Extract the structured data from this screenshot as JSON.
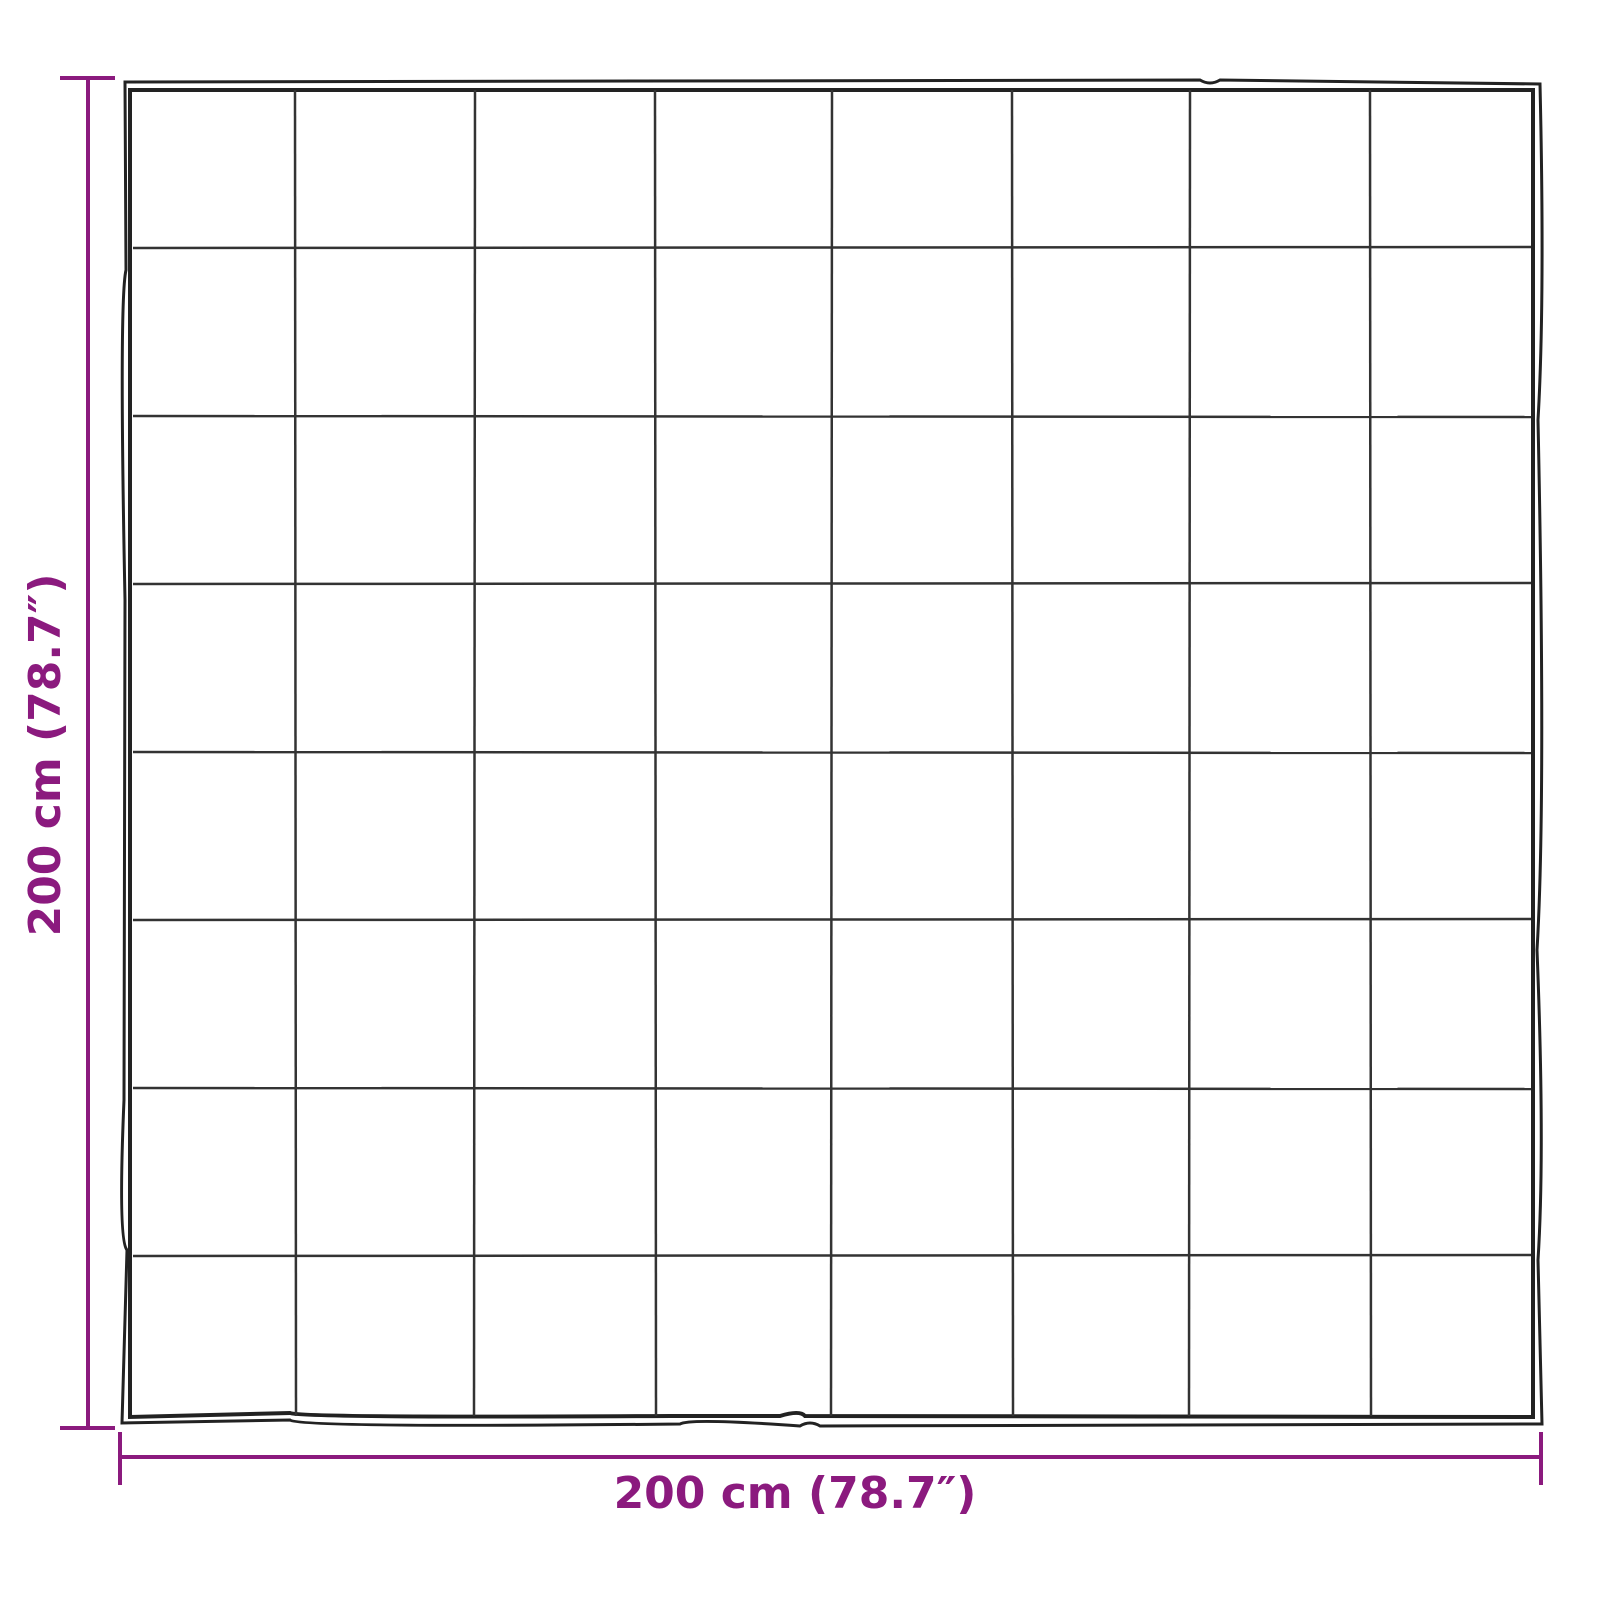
{
  "dimensions": {
    "width_label": "200 cm (78.7″)",
    "height_label": "200 cm (78.7″)"
  },
  "blanket": {
    "columns": 8,
    "rows": 8
  },
  "colors": {
    "dimension": "#8b1a7e",
    "outline": "#222222"
  }
}
